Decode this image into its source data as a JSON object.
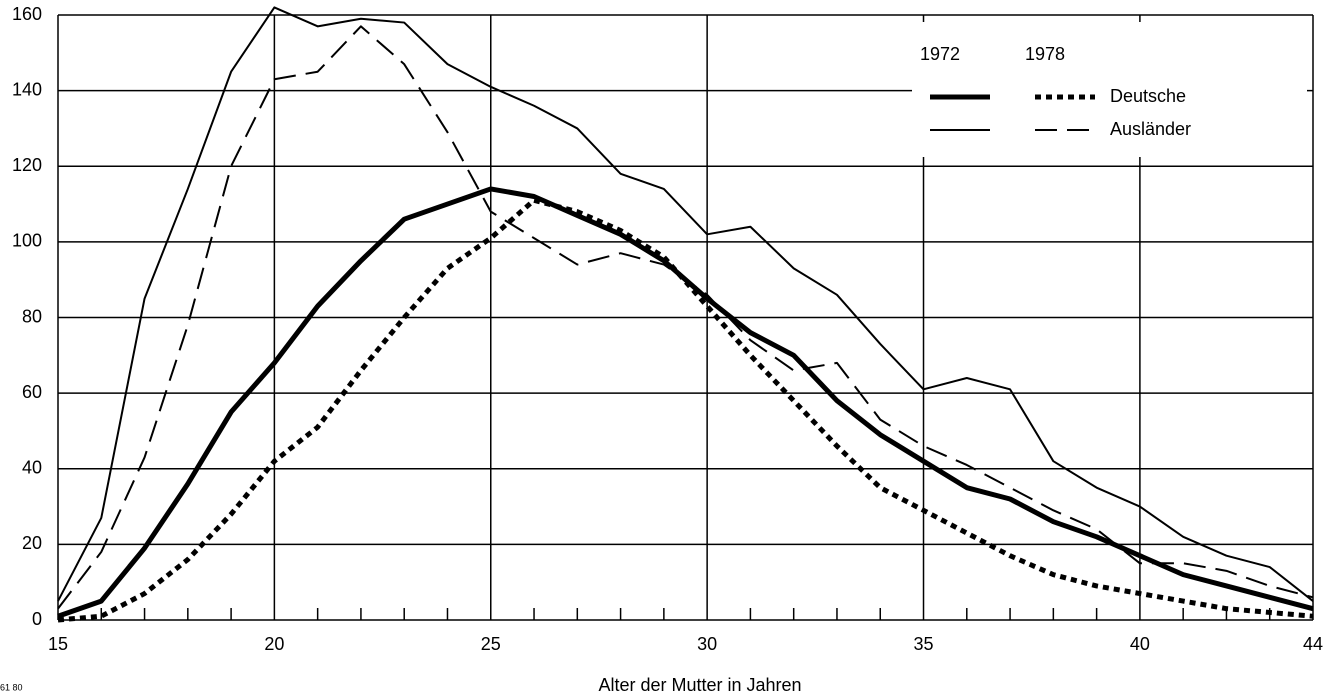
{
  "chart_data": {
    "type": "line",
    "x_label": "Alter der Mutter in Jahren",
    "corner_note": "61 80",
    "x": [
      15,
      16,
      17,
      18,
      19,
      20,
      21,
      22,
      23,
      24,
      25,
      26,
      27,
      28,
      29,
      30,
      31,
      32,
      33,
      34,
      35,
      36,
      37,
      38,
      39,
      40,
      41,
      42,
      43,
      44
    ],
    "xlim": [
      15,
      44
    ],
    "xticks": [
      15,
      20,
      25,
      30,
      35,
      40,
      44
    ],
    "xminorticks": [
      16,
      17,
      18,
      19,
      21,
      22,
      23,
      24,
      26,
      27,
      28,
      29,
      31,
      32,
      33,
      34,
      36,
      37,
      38,
      39,
      41,
      42,
      43
    ],
    "ylim": [
      0,
      160
    ],
    "yticks": [
      0,
      20,
      40,
      60,
      80,
      100,
      120,
      140,
      160
    ],
    "grid": true,
    "legend": "upper right",
    "series": [
      {
        "name": "Deutsche",
        "year": "1972",
        "color": "#000000",
        "line_style": "solid",
        "line_width": 5,
        "values": [
          1,
          5,
          19,
          36,
          55,
          68,
          83,
          95,
          106,
          110,
          114,
          112,
          107,
          102,
          95,
          85,
          76,
          70,
          58,
          49,
          42,
          35,
          32,
          26,
          22,
          17,
          12,
          9,
          6,
          3
        ]
      },
      {
        "name": "Deutsche",
        "year": "1978",
        "color": "#000000",
        "line_style": "dotted",
        "line_width": 5,
        "values": [
          0,
          1,
          7,
          16,
          28,
          42,
          51,
          66,
          80,
          93,
          101,
          111,
          108,
          103,
          96,
          83,
          70,
          58,
          46,
          35,
          29,
          23,
          17,
          12,
          9,
          7,
          5,
          3,
          2,
          1
        ]
      },
      {
        "name": "Ausländer",
        "year": "1972",
        "color": "#000000",
        "line_style": "solid",
        "line_width": 2,
        "values": [
          5,
          27,
          85,
          114,
          145,
          162,
          157,
          159,
          158,
          147,
          141,
          136,
          130,
          118,
          114,
          102,
          104,
          93,
          86,
          73,
          61,
          64,
          61,
          42,
          35,
          30,
          22,
          17,
          14,
          5
        ]
      },
      {
        "name": "Ausländer",
        "year": "1978",
        "color": "#000000",
        "line_style": "dashed",
        "line_width": 2,
        "values": [
          3,
          18,
          43,
          78,
          120,
          143,
          145,
          157,
          147,
          129,
          108,
          101,
          94,
          97,
          94,
          86,
          74,
          66,
          68,
          53,
          46,
          41,
          35,
          29,
          24,
          15,
          15,
          13,
          9,
          6
        ]
      }
    ]
  }
}
